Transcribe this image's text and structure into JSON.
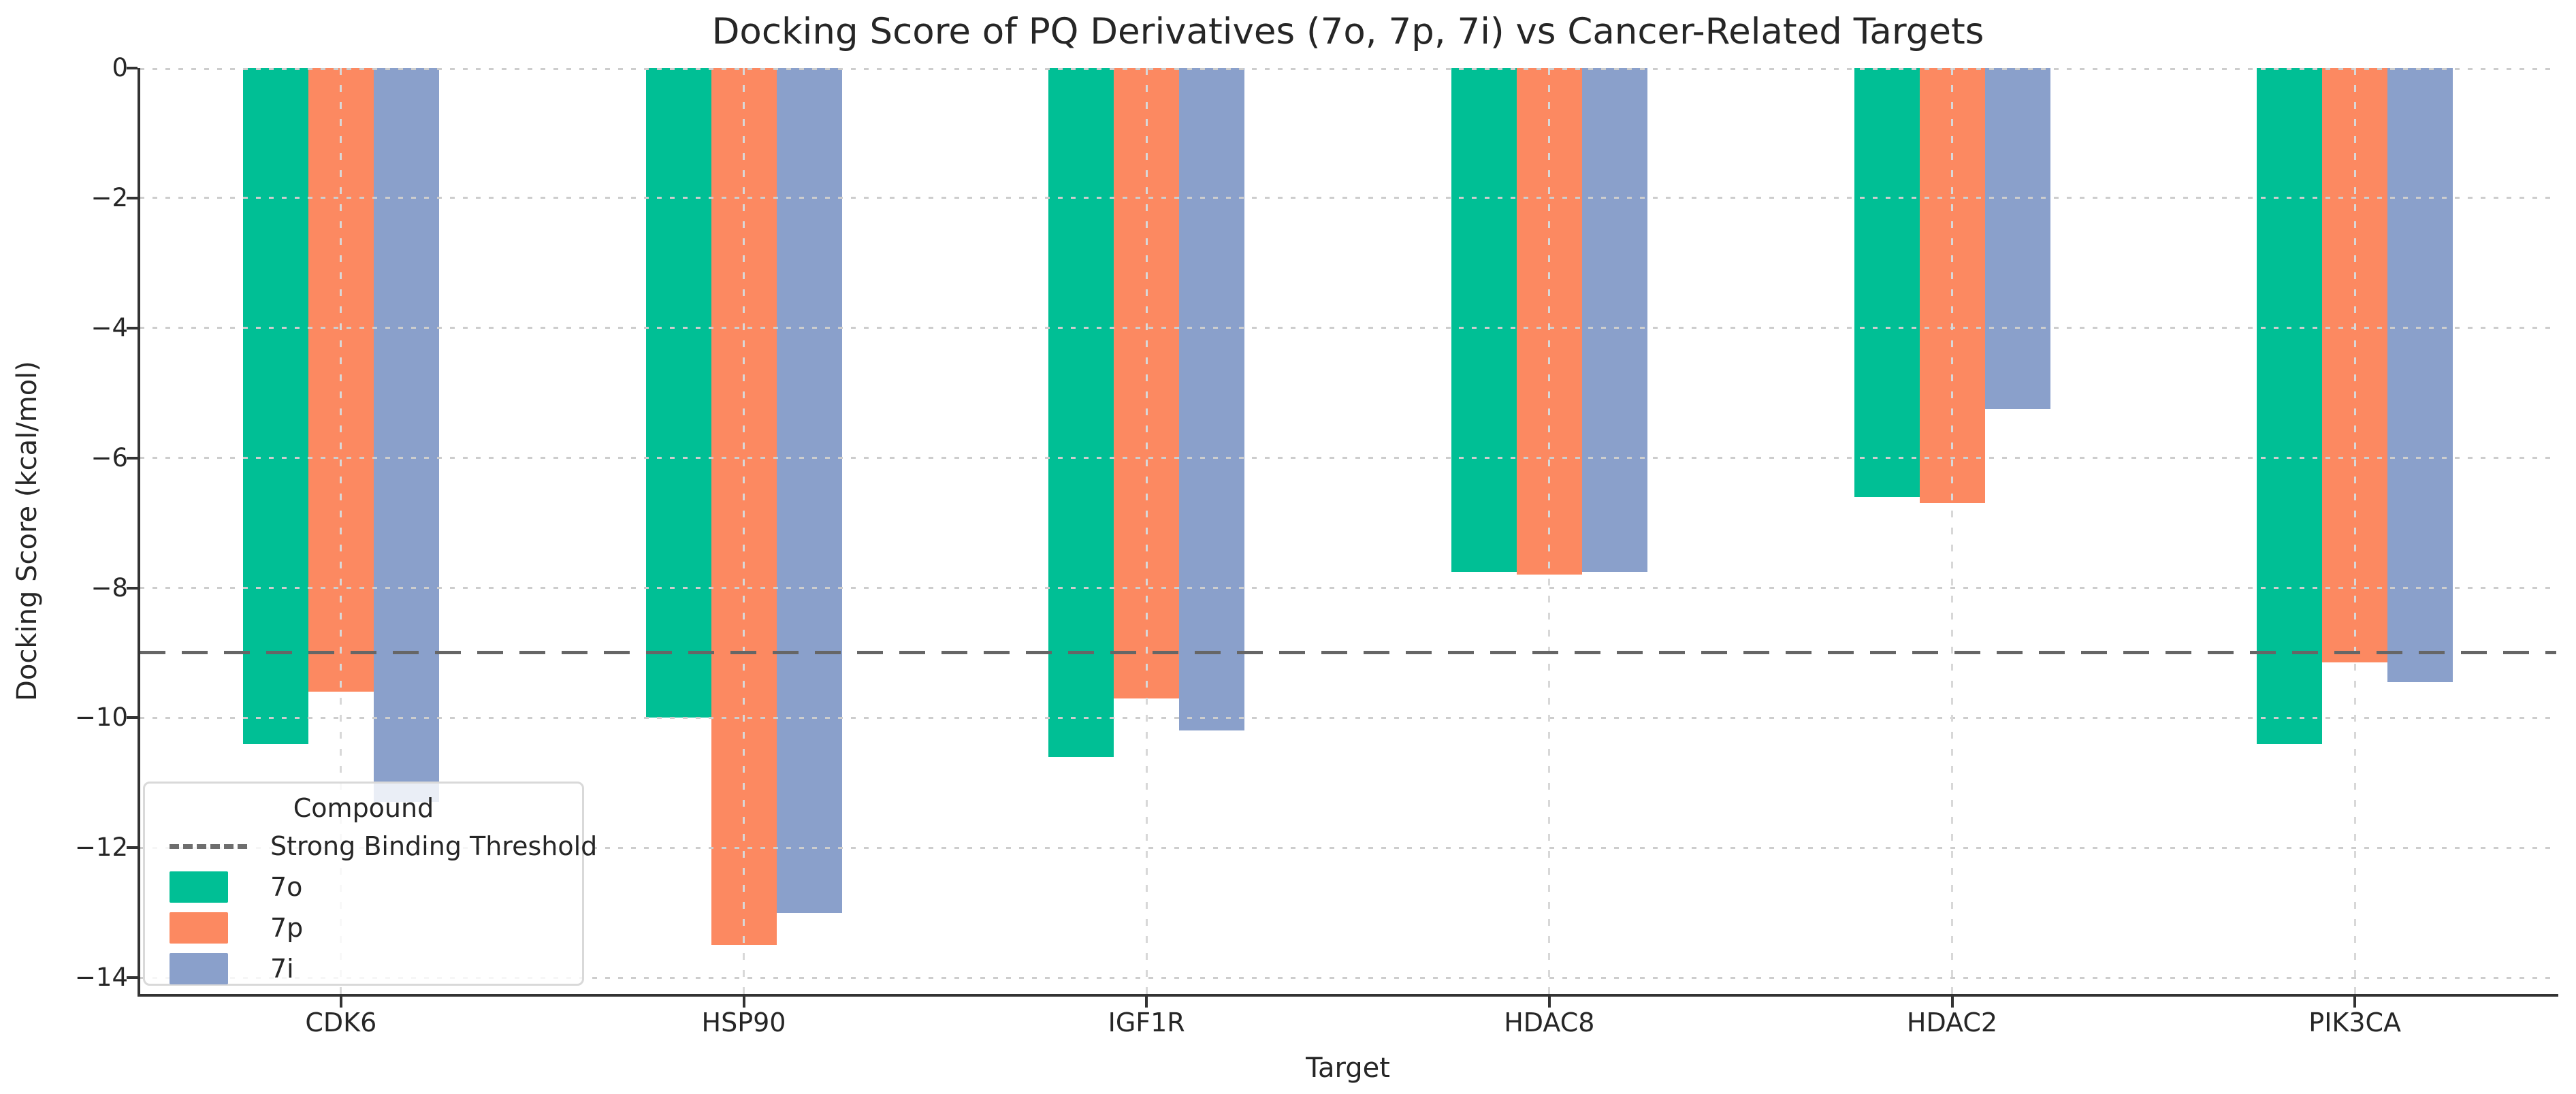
{
  "chart_data": {
    "type": "bar",
    "title": "Docking Score of PQ Derivatives (7o, 7p, 7i) vs Cancer-Related Targets",
    "xlabel": "Target",
    "ylabel": "Docking Score (kcal/mol)",
    "categories": [
      "CDK6",
      "HSP90",
      "IGF1R",
      "HDAC8",
      "HDAC2",
      "PIK3CA"
    ],
    "series": [
      {
        "name": "7o",
        "color": "#00BF95",
        "values": [
          -10.4,
          -10.0,
          -10.6,
          -7.75,
          -6.6,
          -10.4
        ]
      },
      {
        "name": "7p",
        "color": "#FC8961",
        "values": [
          -9.6,
          -13.5,
          -9.7,
          -7.8,
          -6.7,
          -9.15
        ]
      },
      {
        "name": "7i",
        "color": "#8AA0CB",
        "values": [
          -11.3,
          -13.0,
          -10.2,
          -7.75,
          -5.25,
          -9.45
        ]
      }
    ],
    "ylim": [
      -14.25,
      0
    ],
    "yticks": [
      0,
      -2,
      -4,
      -6,
      -8,
      -10,
      -12,
      -14
    ],
    "ytick_labels": [
      "0",
      "−2",
      "−4",
      "−6",
      "−8",
      "−10",
      "−12",
      "−14"
    ],
    "grid": true,
    "threshold": {
      "value": -9,
      "label": "Strong Binding Threshold",
      "color": "#666666",
      "style": "dashed"
    },
    "legend": {
      "title": "Compound",
      "position": "lower left",
      "entries": [
        {
          "type": "line",
          "style": "dashed",
          "color": "#6e6e6e",
          "label": "Strong Binding Threshold"
        },
        {
          "type": "patch",
          "series": "7o",
          "label": "7o"
        },
        {
          "type": "patch",
          "series": "7p",
          "label": "7p"
        },
        {
          "type": "patch",
          "series": "7i",
          "label": "7i"
        }
      ]
    },
    "colors": {
      "grid": "#cdcdcd",
      "spine": "#333333",
      "text": "#262626",
      "background": "#ffffff"
    }
  }
}
